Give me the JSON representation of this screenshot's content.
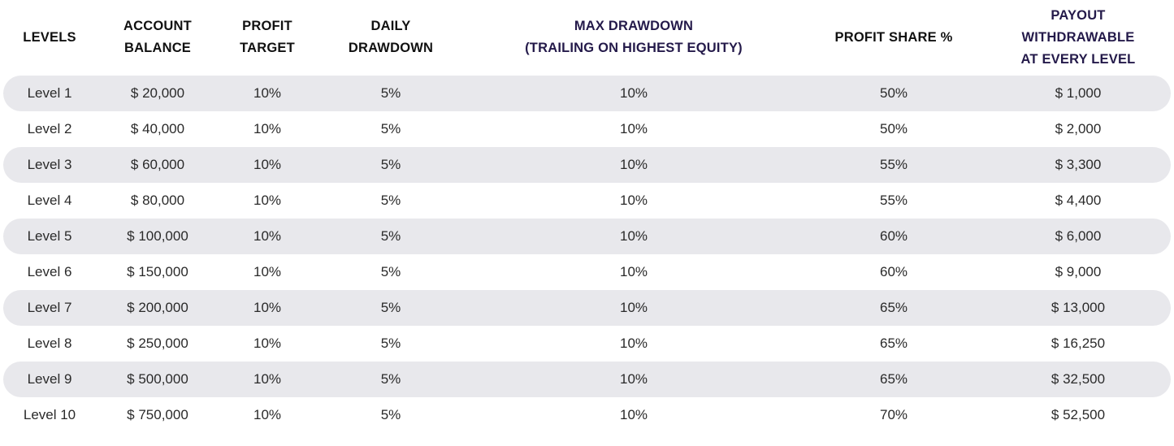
{
  "columns": [
    "LEVELS",
    "ACCOUNT\nBALANCE",
    "PROFIT\nTARGET",
    "DAILY\nDRAWDOWN",
    "MAX DRAWDOWN\n(TRAILING ON HIGHEST EQUITY)",
    "PROFIT SHARE %",
    "PAYOUT\nWITHDRAWABLE\nAT EVERY LEVEL"
  ],
  "rows": [
    [
      "Level 1",
      "$ 20,000",
      "10%",
      "5%",
      "10%",
      "50%",
      "$ 1,000"
    ],
    [
      "Level 2",
      "$ 40,000",
      "10%",
      "5%",
      "10%",
      "50%",
      "$ 2,000"
    ],
    [
      "Level 3",
      "$ 60,000",
      "10%",
      "5%",
      "10%",
      "55%",
      "$ 3,300"
    ],
    [
      "Level 4",
      "$ 80,000",
      "10%",
      "5%",
      "10%",
      "55%",
      "$ 4,400"
    ],
    [
      "Level 5",
      "$ 100,000",
      "10%",
      "5%",
      "10%",
      "60%",
      "$ 6,000"
    ],
    [
      "Level 6",
      "$ 150,000",
      "10%",
      "5%",
      "10%",
      "60%",
      "$ 9,000"
    ],
    [
      "Level 7",
      "$ 200,000",
      "10%",
      "5%",
      "10%",
      "65%",
      "$ 13,000"
    ],
    [
      "Level 8",
      "$ 250,000",
      "10%",
      "5%",
      "10%",
      "65%",
      "$ 16,250"
    ],
    [
      "Level 9",
      "$ 500,000",
      "10%",
      "5%",
      "10%",
      "65%",
      "$ 32,500"
    ],
    [
      "Level 10",
      "$ 750,000",
      "10%",
      "5%",
      "10%",
      "70%",
      "$ 52,500"
    ]
  ],
  "colors": {
    "header_text": "#111111",
    "header_accent": "#241a4a",
    "row_stripe": "#e8e8ec",
    "cell_text": "#2a2a2a"
  }
}
